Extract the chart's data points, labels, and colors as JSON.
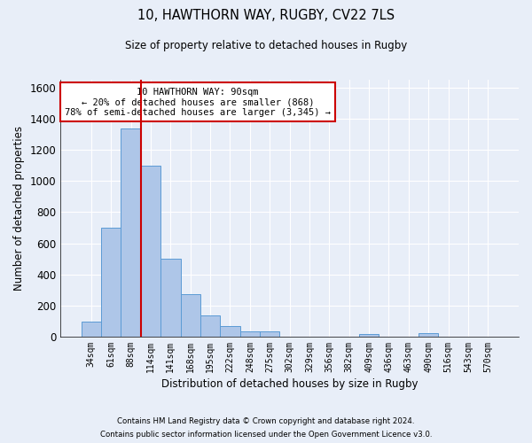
{
  "title_line1": "10, HAWTHORN WAY, RUGBY, CV22 7LS",
  "title_line2": "Size of property relative to detached houses in Rugby",
  "xlabel": "Distribution of detached houses by size in Rugby",
  "ylabel": "Number of detached properties",
  "footer_line1": "Contains HM Land Registry data © Crown copyright and database right 2024.",
  "footer_line2": "Contains public sector information licensed under the Open Government Licence v3.0.",
  "bar_labels": [
    "34sqm",
    "61sqm",
    "88sqm",
    "114sqm",
    "141sqm",
    "168sqm",
    "195sqm",
    "222sqm",
    "248sqm",
    "275sqm",
    "302sqm",
    "329sqm",
    "356sqm",
    "382sqm",
    "409sqm",
    "436sqm",
    "463sqm",
    "490sqm",
    "516sqm",
    "543sqm",
    "570sqm"
  ],
  "bar_values": [
    95,
    700,
    1335,
    1100,
    500,
    275,
    135,
    70,
    35,
    35,
    0,
    0,
    0,
    0,
    15,
    0,
    0,
    20,
    0,
    0,
    0
  ],
  "bar_color": "#aec6e8",
  "bar_edge_color": "#5b9bd5",
  "ylim": [
    0,
    1650
  ],
  "yticks": [
    0,
    200,
    400,
    600,
    800,
    1000,
    1200,
    1400,
    1600
  ],
  "vline_index": 2,
  "vline_color": "#cc0000",
  "annotation_line1": "10 HAWTHORN WAY: 90sqm",
  "annotation_line2": "← 20% of detached houses are smaller (868)",
  "annotation_line3": "78% of semi-detached houses are larger (3,345) →",
  "bg_color": "#e8eef8",
  "grid_color": "#ffffff"
}
